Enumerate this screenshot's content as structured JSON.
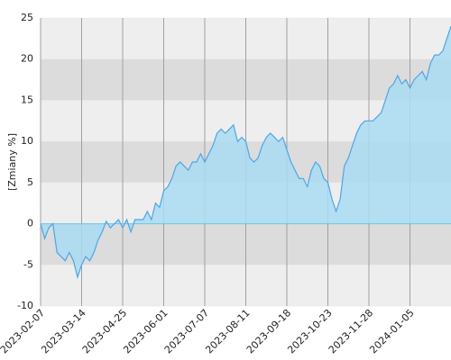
{
  "chart_data": {
    "type": "area",
    "ylabel": "[Zmiany %]",
    "categories": [
      "2023-02-07",
      null,
      null,
      null,
      null,
      null,
      null,
      null,
      null,
      null,
      "2023-03-14",
      null,
      null,
      null,
      null,
      null,
      null,
      null,
      null,
      null,
      "2023-04-25",
      null,
      null,
      null,
      null,
      null,
      null,
      null,
      null,
      null,
      "2023-06-01",
      null,
      null,
      null,
      null,
      null,
      null,
      null,
      null,
      null,
      "2023-07-07",
      null,
      null,
      null,
      null,
      null,
      null,
      null,
      null,
      null,
      "2023-08-11",
      null,
      null,
      null,
      null,
      null,
      null,
      null,
      null,
      null,
      "2023-09-18",
      null,
      null,
      null,
      null,
      null,
      null,
      null,
      null,
      null,
      "2023-10-23",
      null,
      null,
      null,
      null,
      null,
      null,
      null,
      null,
      null,
      "2023-11-28",
      null,
      null,
      null,
      null,
      null,
      null,
      null,
      null,
      null,
      "2024-01-05",
      null,
      null,
      null,
      null,
      null,
      null,
      null,
      null,
      null,
      null
    ],
    "values": [
      0,
      -1.8,
      -0.5,
      0,
      -3.5,
      -4,
      -4.5,
      -3.5,
      -4.5,
      -6.5,
      -5,
      -4,
      -4.5,
      -3.5,
      -2,
      -1,
      0.3,
      -0.5,
      0,
      0.5,
      -0.5,
      0.5,
      -1,
      0.5,
      0.5,
      0.5,
      1.5,
      0.5,
      2.5,
      2,
      4,
      4.5,
      5.5,
      7,
      7.5,
      7,
      6.5,
      7.5,
      7.5,
      8.5,
      7.5,
      8.5,
      9.5,
      11,
      11.5,
      11,
      11.5,
      12,
      10,
      10.5,
      10,
      8,
      7.5,
      8,
      9.5,
      10.5,
      11,
      10.5,
      10,
      10.5,
      9,
      7.5,
      6.5,
      5.5,
      5.5,
      4.5,
      6.5,
      7.5,
      7,
      5.5,
      5,
      3,
      1.5,
      3,
      7,
      8,
      9.5,
      11,
      12,
      12.5,
      12.5,
      12.5,
      13,
      13.5,
      15,
      16.5,
      17,
      18,
      17,
      17.5,
      16.5,
      17.5,
      18,
      18.5,
      17.5,
      19.5,
      20.5,
      20.5,
      21,
      22.5,
      24
    ],
    "color": "#4da6e6",
    "fill": "#a9daf2",
    "ylim": [
      -10,
      25
    ],
    "yticks": [
      -10,
      -5,
      0,
      5,
      10,
      15,
      20,
      25
    ],
    "grid": true
  }
}
